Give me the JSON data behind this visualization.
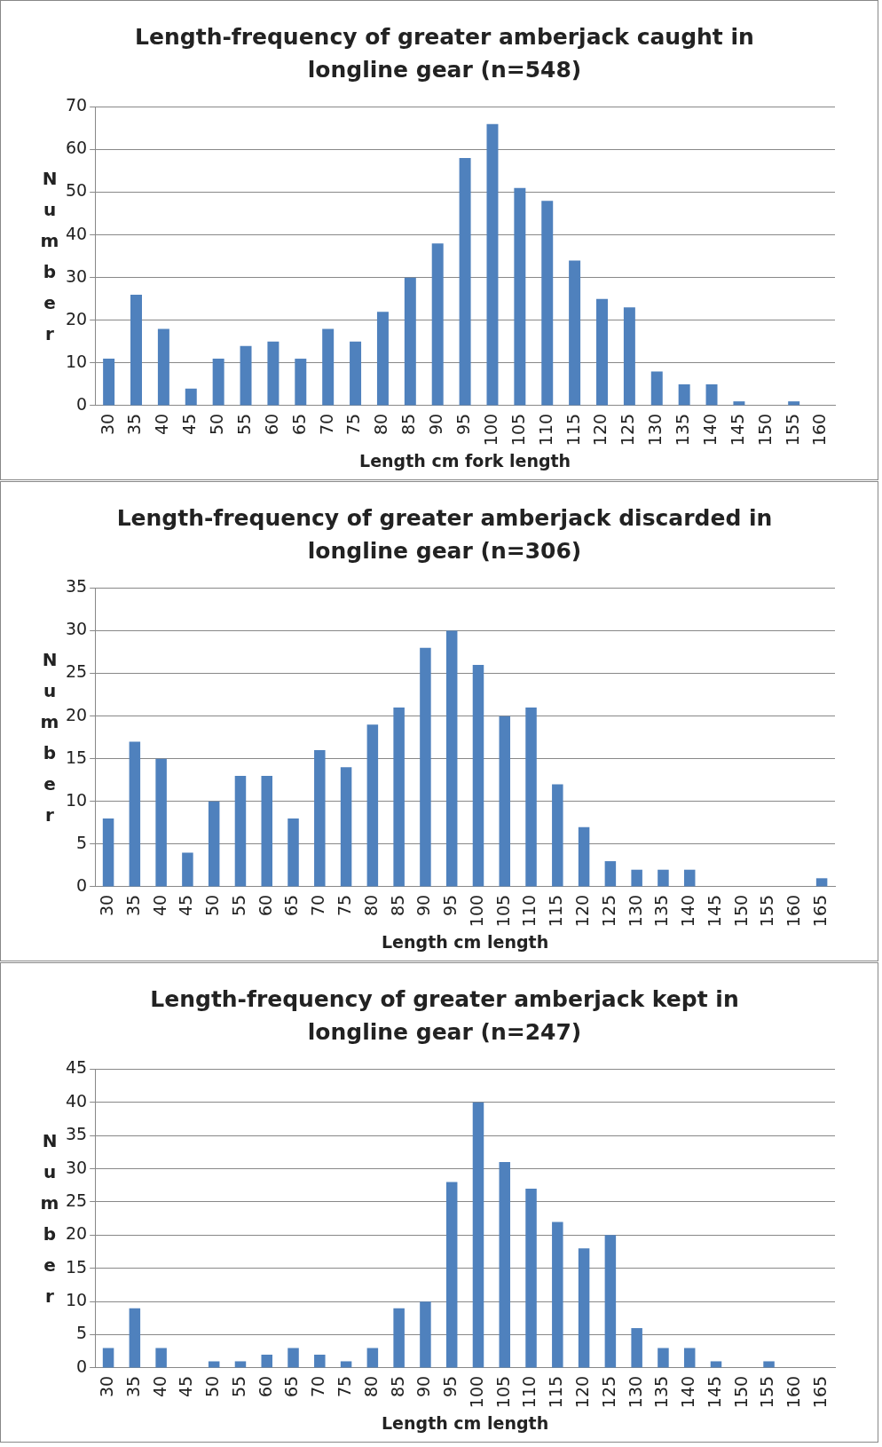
{
  "chart_data": [
    {
      "type": "bar",
      "title": "Length-frequency of greater amberjack caught in longline gear (n=548)",
      "xlabel": "Length cm fork length",
      "ylabel": "Number",
      "categories": [
        "30",
        "35",
        "40",
        "45",
        "50",
        "55",
        "60",
        "65",
        "70",
        "75",
        "80",
        "85",
        "90",
        "95",
        "100",
        "105",
        "110",
        "115",
        "120",
        "125",
        "130",
        "135",
        "140",
        "145",
        "150",
        "155",
        "160"
      ],
      "values": [
        11,
        26,
        18,
        4,
        11,
        14,
        15,
        11,
        18,
        15,
        22,
        30,
        38,
        58,
        66,
        51,
        48,
        34,
        25,
        23,
        8,
        5,
        5,
        1,
        0,
        1,
        0
      ],
      "color": "#4f81bd",
      "ylim": [
        0,
        70
      ],
      "yticks": [
        0,
        10,
        20,
        30,
        40,
        50,
        60,
        70
      ],
      "grid": "y",
      "legend": false
    },
    {
      "type": "bar",
      "title": "Length-frequency of greater amberjack discarded in longline gear (n=306)",
      "xlabel": "Length cm length",
      "ylabel": "Number",
      "categories": [
        "30",
        "35",
        "40",
        "45",
        "50",
        "55",
        "60",
        "65",
        "70",
        "75",
        "80",
        "85",
        "90",
        "95",
        "100",
        "105",
        "110",
        "115",
        "120",
        "125",
        "130",
        "135",
        "140",
        "145",
        "150",
        "155",
        "160",
        "165"
      ],
      "values": [
        8,
        17,
        15,
        4,
        10,
        13,
        13,
        8,
        16,
        14,
        19,
        21,
        28,
        30,
        26,
        20,
        21,
        12,
        7,
        3,
        2,
        2,
        2,
        0,
        0,
        0,
        0,
        1
      ],
      "color": "#4f81bd",
      "ylim": [
        0,
        35
      ],
      "yticks": [
        0,
        5,
        10,
        15,
        20,
        25,
        30,
        35
      ],
      "grid": "y",
      "legend": false
    },
    {
      "type": "bar",
      "title": "Length-frequency of greater amberjack kept in longline gear (n=247)",
      "xlabel": "Length cm length",
      "ylabel": "Number",
      "categories": [
        "30",
        "35",
        "40",
        "45",
        "50",
        "55",
        "60",
        "65",
        "70",
        "75",
        "80",
        "85",
        "90",
        "95",
        "100",
        "105",
        "110",
        "115",
        "120",
        "125",
        "130",
        "135",
        "140",
        "145",
        "150",
        "155",
        "160",
        "165"
      ],
      "values": [
        3,
        9,
        3,
        0,
        1,
        1,
        2,
        3,
        2,
        1,
        3,
        9,
        10,
        28,
        40,
        31,
        27,
        22,
        18,
        20,
        6,
        3,
        3,
        1,
        0,
        1,
        0,
        0
      ],
      "color": "#4f81bd",
      "ylim": [
        0,
        45
      ],
      "yticks": [
        0,
        5,
        10,
        15,
        20,
        25,
        30,
        35,
        40,
        45
      ],
      "grid": "y",
      "legend": false
    }
  ]
}
